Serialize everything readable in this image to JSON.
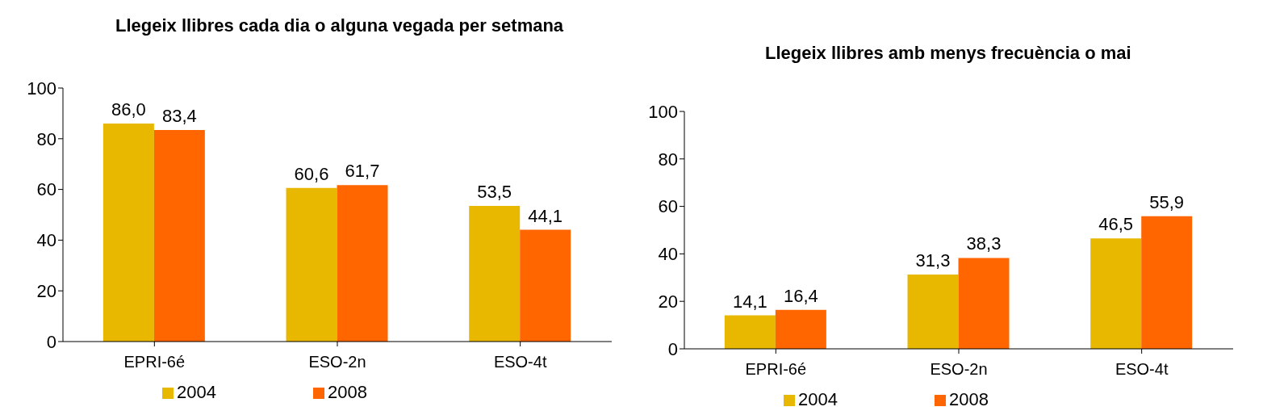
{
  "chart_data": [
    {
      "type": "bar",
      "title": "Llegeix llibres cada dia o alguna vegada per setmana",
      "categories": [
        "EPRI-6é",
        "ESO-2n",
        "ESO-4t"
      ],
      "series": [
        {
          "name": "2004",
          "color": "#e8b800",
          "values": [
            86.0,
            60.6,
            53.5
          ],
          "value_labels": [
            "86,0",
            "60,6",
            "53,5"
          ]
        },
        {
          "name": "2008",
          "color": "#ff6600",
          "values": [
            83.4,
            61.7,
            44.1
          ],
          "value_labels": [
            "83,4",
            "61,7",
            "44,1"
          ]
        }
      ],
      "ylim": [
        0,
        100
      ],
      "yticks": [
        0,
        20,
        40,
        60,
        80,
        100
      ],
      "grid": false,
      "legend": "bottom"
    },
    {
      "type": "bar",
      "title": "Llegeix llibres amb menys frecuència o mai",
      "categories": [
        "EPRI-6é",
        "ESO-2n",
        "ESO-4t"
      ],
      "series": [
        {
          "name": "2004",
          "color": "#e8b800",
          "values": [
            14.1,
            31.3,
            46.5
          ],
          "value_labels": [
            "14,1",
            "31,3",
            "46,5"
          ]
        },
        {
          "name": "2008",
          "color": "#ff6600",
          "values": [
            16.4,
            38.3,
            55.9
          ],
          "value_labels": [
            "16,4",
            "38,3",
            "55,9"
          ]
        }
      ],
      "ylim": [
        0,
        100
      ],
      "yticks": [
        0,
        20,
        40,
        60,
        80,
        100
      ],
      "grid": false,
      "legend": "bottom"
    }
  ]
}
